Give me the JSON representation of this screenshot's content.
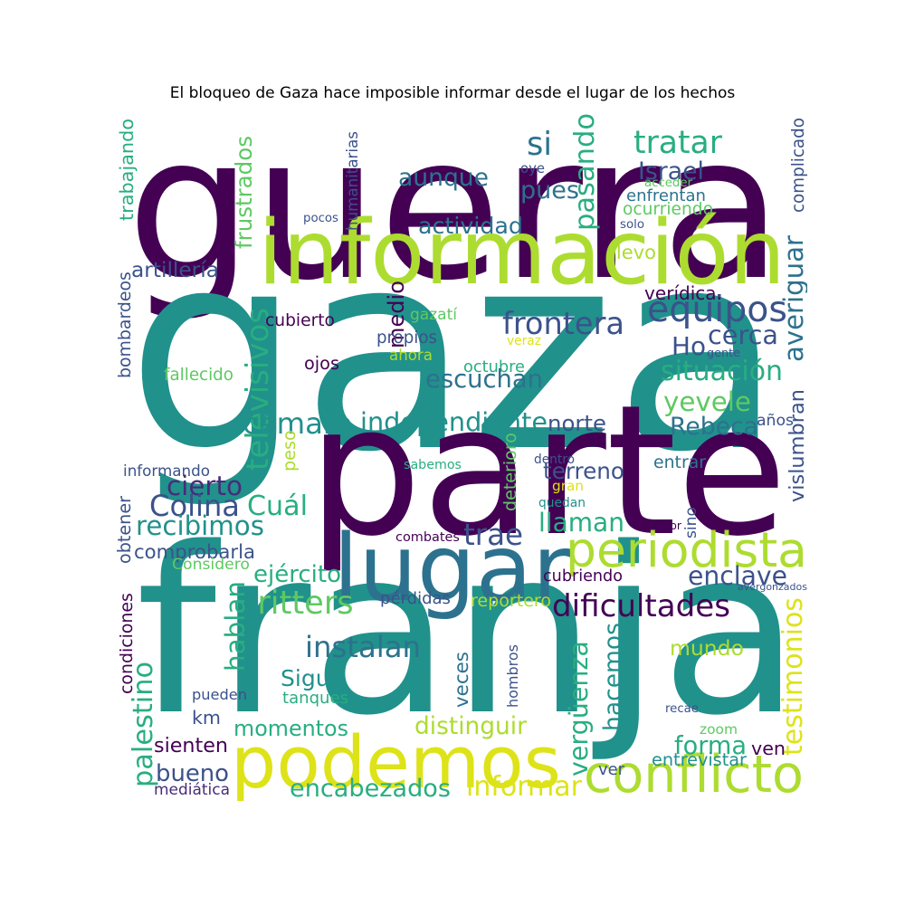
{
  "title": "El bloqueo de Gaza hace imposible informar desde el lugar de los hechos",
  "colors": {
    "dark_purple": "#440154",
    "indigo": "#472c7a",
    "slate_blue": "#3b528b",
    "steel_blue": "#2c728e",
    "teal": "#21918c",
    "green_teal": "#28ae80",
    "sea_green": "#5ec962",
    "lime": "#addc30",
    "yellow": "#dde318"
  },
  "words": [
    {
      "text": "guerra",
      "color": "#440154"
    },
    {
      "text": "gaza",
      "color": "#21918c"
    },
    {
      "text": "parte",
      "color": "#440154"
    },
    {
      "text": "franja",
      "color": "#21918c"
    },
    {
      "text": "información",
      "color": "#addc30"
    },
    {
      "text": "lugar",
      "color": "#2c728e"
    },
    {
      "text": "podemos",
      "color": "#dde318"
    },
    {
      "text": "periodista",
      "color": "#addc30"
    },
    {
      "text": "conflicto",
      "color": "#addc30"
    },
    {
      "text": "equipos",
      "color": "#3b528b"
    },
    {
      "text": "frontera",
      "color": "#3b528b"
    },
    {
      "text": "dificultades",
      "color": "#440154"
    },
    {
      "text": "aunque",
      "color": "#2c728e"
    },
    {
      "text": "tratar",
      "color": "#28ae80"
    },
    {
      "text": "si",
      "color": "#2c728e"
    },
    {
      "text": "pues",
      "color": "#2c728e"
    },
    {
      "text": "pasando",
      "color": "#28ae80"
    },
    {
      "text": "Israel",
      "color": "#3b528b"
    },
    {
      "text": "actividad",
      "color": "#2c728e"
    },
    {
      "text": "frustrados",
      "color": "#5ec962"
    },
    {
      "text": "humanitarias",
      "color": "#3b528b"
    },
    {
      "text": "trabajando",
      "color": "#28ae80"
    },
    {
      "text": "complicado",
      "color": "#3b528b"
    },
    {
      "text": "oye",
      "color": "#3b528b"
    },
    {
      "text": "acceder",
      "color": "#5ec962"
    },
    {
      "text": "enfrentan",
      "color": "#2c728e"
    },
    {
      "text": "ocurriendo",
      "color": "#5ec962"
    },
    {
      "text": "pocos",
      "color": "#3b528b"
    },
    {
      "text": "solo",
      "color": "#3b528b"
    },
    {
      "text": "llevo",
      "color": "#addc30"
    },
    {
      "text": "artillería",
      "color": "#3b528b"
    },
    {
      "text": "averiguar",
      "color": "#2c728e"
    },
    {
      "text": "verídica.",
      "color": "#440154"
    },
    {
      "text": "medio",
      "color": "#440154"
    },
    {
      "text": "bombardeos",
      "color": "#3b528b"
    },
    {
      "text": "televisivos",
      "color": "#28ae80"
    },
    {
      "text": "cubierto",
      "color": "#440154"
    },
    {
      "text": "gazatí",
      "color": "#5ec962"
    },
    {
      "text": "propios",
      "color": "#3b528b"
    },
    {
      "text": "veraz",
      "color": "#dde318"
    },
    {
      "text": "cerca",
      "color": "#3b528b"
    },
    {
      "text": "Ho",
      "color": "#3b528b"
    },
    {
      "text": "gente",
      "color": "#3b528b"
    },
    {
      "text": "ahora",
      "color": "#addc30"
    },
    {
      "text": "ojos",
      "color": "#440154"
    },
    {
      "text": "situación",
      "color": "#28ae80"
    },
    {
      "text": "fallecido",
      "color": "#5ec962"
    },
    {
      "text": "octubre",
      "color": "#28ae80"
    },
    {
      "text": "escuchan",
      "color": "#2c728e"
    },
    {
      "text": "yevele",
      "color": "#5ec962"
    },
    {
      "text": "vislumbran",
      "color": "#3b528b"
    },
    {
      "text": "cámara",
      "color": "#21918c"
    },
    {
      "text": "independiente",
      "color": "#21918c"
    },
    {
      "text": "norte",
      "color": "#3b528b"
    },
    {
      "text": "Rebeca",
      "color": "#2c728e"
    },
    {
      "text": "años",
      "color": "#3b528b"
    },
    {
      "text": "deterioro",
      "color": "#5ec962"
    },
    {
      "text": "peso",
      "color": "#addc30"
    },
    {
      "text": "informando",
      "color": "#3b528b"
    },
    {
      "text": "dentro",
      "color": "#3b528b"
    },
    {
      "text": "sabemos",
      "color": "#28ae80"
    },
    {
      "text": "terreno",
      "color": "#3b528b"
    },
    {
      "text": "entrar",
      "color": "#2c728e"
    },
    {
      "text": "cierto",
      "color": "#472c7a"
    },
    {
      "text": "gran",
      "color": "#dde318"
    },
    {
      "text": "Colina",
      "color": "#3b528b"
    },
    {
      "text": "Cuál",
      "color": "#28ae80"
    },
    {
      "text": "quedan",
      "color": "#21918c"
    },
    {
      "text": "obtener",
      "color": "#3b528b"
    },
    {
      "text": "sino",
      "color": "#3b528b"
    },
    {
      "text": "recibimos",
      "color": "#21918c"
    },
    {
      "text": "llaman",
      "color": "#28ae80"
    },
    {
      "text": "peor",
      "color": "#440154"
    },
    {
      "text": "trae",
      "color": "#3b528b"
    },
    {
      "text": "combates",
      "color": "#440154"
    },
    {
      "text": "comprobarla",
      "color": "#3b528b"
    },
    {
      "text": "Considero",
      "color": "#5ec962"
    },
    {
      "text": "ejército",
      "color": "#28ae80"
    },
    {
      "text": "enclave",
      "color": "#3b528b"
    },
    {
      "text": "cubriendo",
      "color": "#440154"
    },
    {
      "text": "avergonzados",
      "color": "#3b528b"
    },
    {
      "text": "ritters",
      "color": "#5ec962"
    },
    {
      "text": "pérdidas",
      "color": "#3b528b"
    },
    {
      "text": "reportero",
      "color": "#addc30"
    },
    {
      "text": "hablan",
      "color": "#28ae80"
    },
    {
      "text": "condiciones",
      "color": "#440154"
    },
    {
      "text": "instalan",
      "color": "#2c728e"
    },
    {
      "text": "hacemos",
      "color": "#21918c"
    },
    {
      "text": "mundo",
      "color": "#addc30"
    },
    {
      "text": "testimonios",
      "color": "#dde318"
    },
    {
      "text": "Sigue",
      "color": "#21918c"
    },
    {
      "text": "veces",
      "color": "#2c728e"
    },
    {
      "text": "hombros",
      "color": "#3b528b"
    },
    {
      "text": "vergüenza",
      "color": "#28ae80"
    },
    {
      "text": "palestino",
      "color": "#28ae80"
    },
    {
      "text": "pueden",
      "color": "#3b528b"
    },
    {
      "text": "tanques",
      "color": "#28ae80"
    },
    {
      "text": "km",
      "color": "#3b528b"
    },
    {
      "text": "recae",
      "color": "#3b528b"
    },
    {
      "text": "zoom",
      "color": "#5ec962"
    },
    {
      "text": "momentos",
      "color": "#28ae80"
    },
    {
      "text": "distinguir",
      "color": "#addc30"
    },
    {
      "text": "forma",
      "color": "#28ae80"
    },
    {
      "text": "sienten",
      "color": "#440154"
    },
    {
      "text": "ven",
      "color": "#440154"
    },
    {
      "text": "entrevistar",
      "color": "#21918c"
    },
    {
      "text": "bueno",
      "color": "#3b528b"
    },
    {
      "text": "ver",
      "color": "#3b528b"
    },
    {
      "text": "mediática",
      "color": "#472c7a"
    },
    {
      "text": "encabezados",
      "color": "#28ae80"
    },
    {
      "text": "informar",
      "color": "#dde318"
    }
  ]
}
